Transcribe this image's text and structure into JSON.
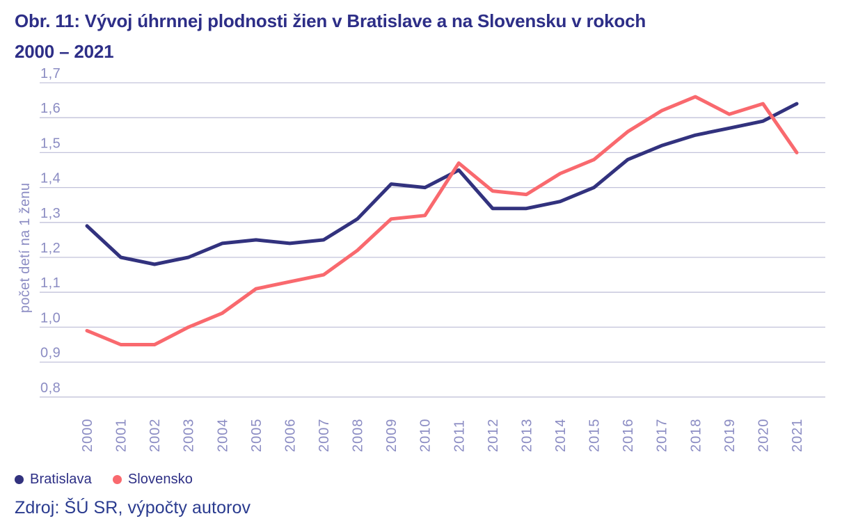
{
  "title": "Obr. 11: Vývoj úhrnnej plodnosti žien v Bratislave a na Slovensku v rokoch 2000 – 2021",
  "title_lines": [
    "Obr. 11: Vývoj úhrnnej plodnosti žien v Bratislave a na Slovensku v rokoch",
    "2000 – 2021"
  ],
  "source": "Zdroj: ŠÚ SR, výpočty autorov",
  "colors": {
    "title": "#2D2E87",
    "axis_text": "#8B8CC3",
    "gridline": "#C2C2DA",
    "bratislava_line": "#32327E",
    "slovensko_line": "#F9696E",
    "legend_text": "#2D2F85",
    "source_text": "#2A3B8F",
    "background": "#FFFFFF"
  },
  "chart_data": {
    "type": "line",
    "title": "Obr. 11: Vývoj úhrnnej plodnosti žien v Bratislave a na Slovensku v rokoch 2000 – 2021",
    "xlabel": "",
    "ylabel": "počet detí na 1 ženu",
    "ylim": [
      0.8,
      1.7
    ],
    "yticks": [
      1.7,
      1.6,
      1.5,
      1.4,
      1.3,
      1.2,
      1.1,
      1.0,
      0.9,
      0.8
    ],
    "decimal_separator": ",",
    "grid": true,
    "legend_position": "bottom-left",
    "categories": [
      "2000",
      "2001",
      "2002",
      "2003",
      "2004",
      "2005",
      "2006",
      "2007",
      "2008",
      "2009",
      "2010",
      "2011",
      "2012",
      "2013",
      "2014",
      "2015",
      "2016",
      "2017",
      "2018",
      "2019",
      "2020",
      "2021"
    ],
    "series": [
      {
        "name": "Bratislava",
        "color": "#32327E",
        "values": [
          1.29,
          1.2,
          1.18,
          1.2,
          1.24,
          1.25,
          1.24,
          1.25,
          1.31,
          1.41,
          1.4,
          1.45,
          1.34,
          1.34,
          1.36,
          1.4,
          1.48,
          1.52,
          1.55,
          1.57,
          1.59,
          1.64
        ]
      },
      {
        "name": "Slovensko",
        "color": "#F9696E",
        "values": [
          0.99,
          0.95,
          0.95,
          1.0,
          1.04,
          1.11,
          1.13,
          1.15,
          1.22,
          1.31,
          1.32,
          1.47,
          1.39,
          1.38,
          1.44,
          1.48,
          1.56,
          1.62,
          1.66,
          1.61,
          1.64,
          1.5
        ]
      }
    ]
  }
}
